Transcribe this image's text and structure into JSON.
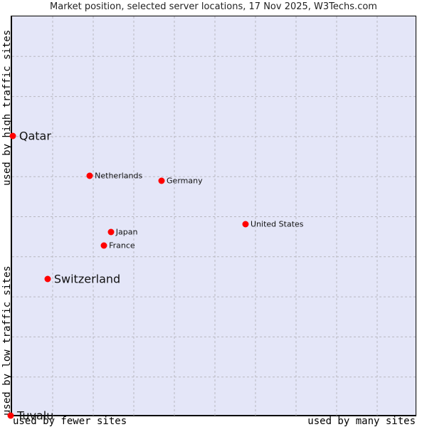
{
  "chart_data": {
    "type": "scatter",
    "title": "Market position, selected server locations, 17 Nov 2025, W3Techs.com",
    "xlabel_left": "used by fewer sites",
    "xlabel_right": "used by many sites",
    "ylabel_bottom": "used by low traffic sites",
    "ylabel_top": "used by high traffic sites",
    "xlim": [
      0,
      10
    ],
    "ylim": [
      0,
      10
    ],
    "grid": true,
    "grid_divisions": 10,
    "point_color": "#ff0000",
    "background_color": "#e4e6f8",
    "points": [
      {
        "label": "Qatar",
        "x": 0.05,
        "y": 7.0,
        "size": "large"
      },
      {
        "label": "Netherlands",
        "x": 1.95,
        "y": 6.0,
        "size": "small"
      },
      {
        "label": "Germany",
        "x": 3.72,
        "y": 5.88,
        "size": "small"
      },
      {
        "label": "United States",
        "x": 5.79,
        "y": 4.8,
        "size": "small"
      },
      {
        "label": "Japan",
        "x": 2.47,
        "y": 4.6,
        "size": "small"
      },
      {
        "label": "France",
        "x": 2.3,
        "y": 4.26,
        "size": "small"
      },
      {
        "label": "Switzerland",
        "x": 0.91,
        "y": 3.43,
        "size": "large"
      },
      {
        "label": "Tuvalu",
        "x": 0.0,
        "y": 0.02,
        "size": "large"
      }
    ]
  }
}
